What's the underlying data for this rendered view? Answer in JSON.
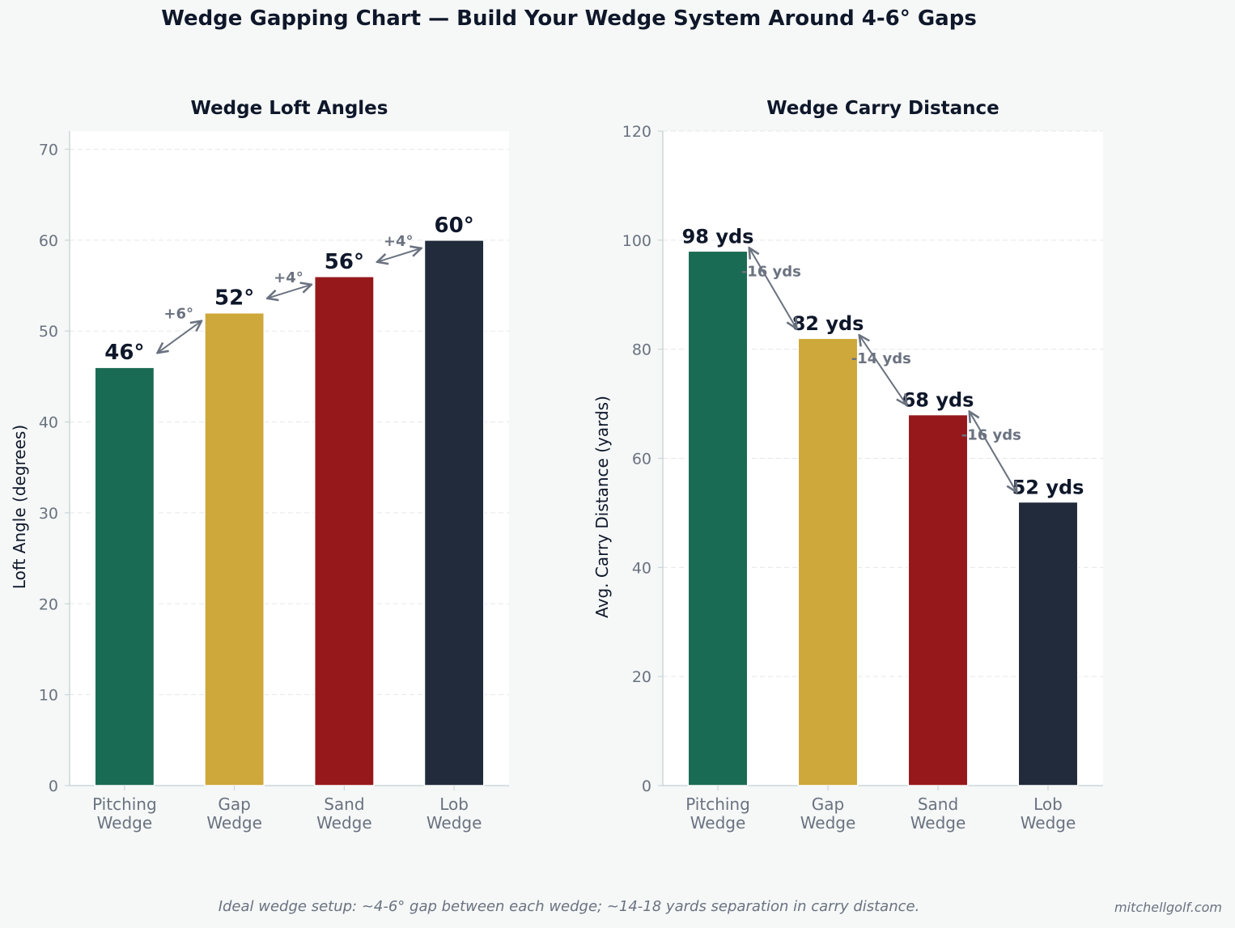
{
  "suptitle": "Wedge Gapping Chart — Build Your Wedge System Around 4-6° Gaps",
  "footnote": "Ideal wedge setup: ~4-6° gap between each wedge; ~14-18 yards separation in carry distance.",
  "watermark": "mitchellgolf.com",
  "colors": {
    "background": "#f5f8f7",
    "plot_bg": "#ffffff",
    "bars": [
      "#1a6b53",
      "#cfa83b",
      "#96181b",
      "#212b3b"
    ],
    "text_dark": "#0f172a",
    "tick_text": "#6b7280",
    "annotation": "#6b7280",
    "grid": "#e5e7eb",
    "axis": "#cbd5d9"
  },
  "chart_data": [
    {
      "type": "bar",
      "title": "Wedge Loft Angles",
      "xlabel": "",
      "ylabel": "Loft Angle (degrees)",
      "categories": [
        [
          "Pitching",
          "Wedge"
        ],
        [
          "Gap",
          "Wedge"
        ],
        [
          "Sand",
          "Wedge"
        ],
        [
          "Lob",
          "Wedge"
        ]
      ],
      "values": [
        46,
        52,
        56,
        60
      ],
      "value_labels": [
        "46°",
        "52°",
        "56°",
        "60°"
      ],
      "gap_labels": [
        "+6°",
        "+4°",
        "+4°"
      ],
      "ylim": [
        0,
        72
      ],
      "yticks": [
        0,
        10,
        20,
        30,
        40,
        50,
        60,
        70
      ],
      "grid": true,
      "legend": "none"
    },
    {
      "type": "bar",
      "title": "Wedge Carry Distance",
      "xlabel": "",
      "ylabel": "Avg. Carry Distance (yards)",
      "categories": [
        [
          "Pitching",
          "Wedge"
        ],
        [
          "Gap",
          "Wedge"
        ],
        [
          "Sand",
          "Wedge"
        ],
        [
          "Lob",
          "Wedge"
        ]
      ],
      "values": [
        98,
        82,
        68,
        52
      ],
      "value_labels": [
        "98 yds",
        "82 yds",
        "68 yds",
        "52 yds"
      ],
      "gap_labels": [
        "-16 yds",
        "-14 yds",
        "-16 yds"
      ],
      "ylim": [
        0,
        120
      ],
      "yticks": [
        0,
        20,
        40,
        60,
        80,
        100,
        120
      ],
      "grid": true,
      "legend": "none"
    }
  ]
}
